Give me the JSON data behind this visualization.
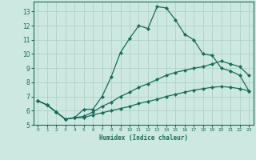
{
  "title": "",
  "xlabel": "Humidex (Indice chaleur)",
  "ylabel": "",
  "bg_color": "#cce8e0",
  "line_color": "#1a6b5a",
  "grid_color": "#aaccc4",
  "xlim": [
    -0.5,
    23.5
  ],
  "ylim": [
    5.0,
    13.7
  ],
  "yticks": [
    5,
    6,
    7,
    8,
    9,
    10,
    11,
    12,
    13
  ],
  "xticks": [
    0,
    1,
    2,
    3,
    4,
    5,
    6,
    7,
    8,
    9,
    10,
    11,
    12,
    13,
    14,
    15,
    16,
    17,
    18,
    19,
    20,
    21,
    22,
    23
  ],
  "line1_x": [
    0,
    1,
    2,
    3,
    4,
    5,
    6,
    7,
    8,
    9,
    10,
    11,
    12,
    13,
    14,
    15,
    16,
    17,
    18,
    19,
    20,
    21,
    22,
    23
  ],
  "line1_y": [
    6.7,
    6.4,
    5.9,
    5.4,
    5.5,
    6.1,
    6.1,
    7.0,
    8.4,
    10.1,
    11.1,
    12.0,
    11.8,
    13.35,
    13.25,
    12.4,
    11.4,
    11.0,
    10.0,
    9.9,
    9.0,
    8.8,
    8.5,
    7.4
  ],
  "line2_x": [
    0,
    1,
    2,
    3,
    4,
    5,
    6,
    7,
    8,
    9,
    10,
    11,
    12,
    13,
    14,
    15,
    16,
    17,
    18,
    19,
    20,
    21,
    22,
    23
  ],
  "line2_y": [
    6.7,
    6.4,
    5.9,
    5.4,
    5.5,
    5.6,
    5.9,
    6.3,
    6.6,
    7.0,
    7.3,
    7.65,
    7.9,
    8.2,
    8.5,
    8.7,
    8.85,
    9.0,
    9.1,
    9.3,
    9.5,
    9.3,
    9.1,
    8.5
  ],
  "line3_x": [
    0,
    1,
    2,
    3,
    4,
    5,
    6,
    7,
    8,
    9,
    10,
    11,
    12,
    13,
    14,
    15,
    16,
    17,
    18,
    19,
    20,
    21,
    22,
    23
  ],
  "line3_y": [
    6.7,
    6.4,
    5.9,
    5.4,
    5.5,
    5.5,
    5.7,
    5.85,
    6.0,
    6.15,
    6.3,
    6.5,
    6.65,
    6.8,
    7.0,
    7.15,
    7.3,
    7.45,
    7.55,
    7.65,
    7.7,
    7.65,
    7.55,
    7.4
  ]
}
